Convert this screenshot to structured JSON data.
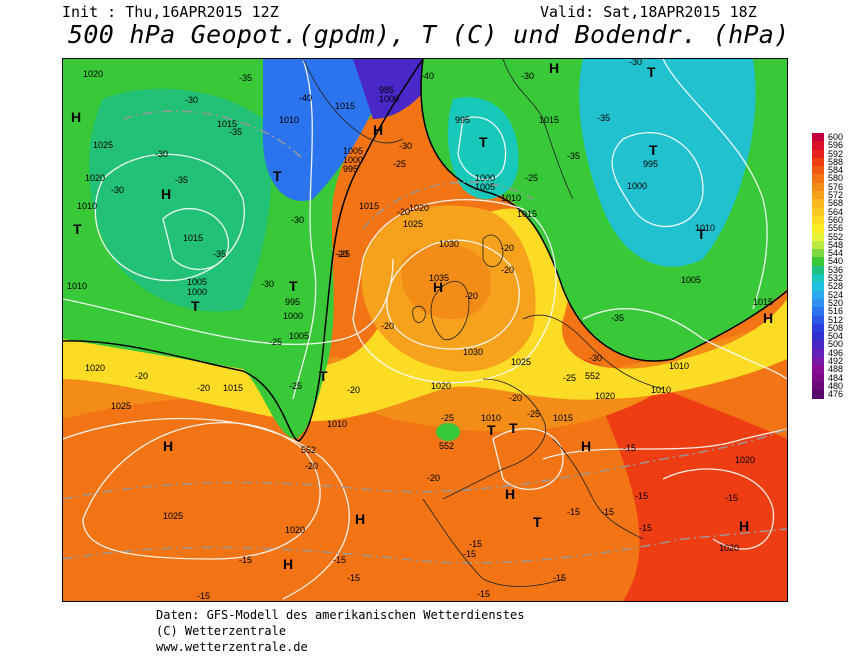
{
  "header": {
    "init": "Init : Thu,16APR2015 12Z",
    "valid": "Valid: Sat,18APR2015 18Z",
    "title": "500 hPa Geopot.(gpdm), T (C) und Bodendr. (hPa)"
  },
  "legend": {
    "levels": [
      "600",
      "596",
      "592",
      "588",
      "584",
      "580",
      "576",
      "572",
      "568",
      "564",
      "560",
      "556",
      "552",
      "548",
      "544",
      "540",
      "536",
      "532",
      "528",
      "524",
      "520",
      "516",
      "512",
      "508",
      "504",
      "500",
      "496",
      "492",
      "488",
      "484",
      "480",
      "476"
    ],
    "colors": [
      "#c0003a",
      "#d8102a",
      "#e82020",
      "#ee3d12",
      "#f05a10",
      "#f27414",
      "#f48c18",
      "#f6a21c",
      "#f8b820",
      "#fac822",
      "#fcdc24",
      "#fcee26",
      "#e8f43a",
      "#bcea40",
      "#7ed842",
      "#38c838",
      "#20c080",
      "#18c8b8",
      "#20c0e0",
      "#2ca8ee",
      "#3090f0",
      "#2c74ee",
      "#2c58e8",
      "#2c40e0",
      "#3030d0",
      "#4a28c8",
      "#6420b8",
      "#7818a8",
      "#880c98",
      "#7a0a88",
      "#6a0878",
      "#58086a"
    ]
  },
  "map": {
    "pressure_centers": [
      {
        "type": "H",
        "label": "H"
      },
      {
        "type": "T",
        "label": "T"
      }
    ],
    "isobar_labels": [
      "1020",
      "1025",
      "1010",
      "1015",
      "1005",
      "1000",
      "995",
      "985",
      "1030",
      "1035"
    ],
    "isotherm_labels": [
      "-40",
      "-35",
      "-30",
      "-25",
      "-20",
      "-15"
    ],
    "contour_labels": [
      "552"
    ]
  },
  "footer": {
    "line1": "Daten: GFS-Modell des amerikanischen Wetterdienstes",
    "line2": "(C) Wetterzentrale",
    "line3": "www.wetterzentrale.de"
  }
}
